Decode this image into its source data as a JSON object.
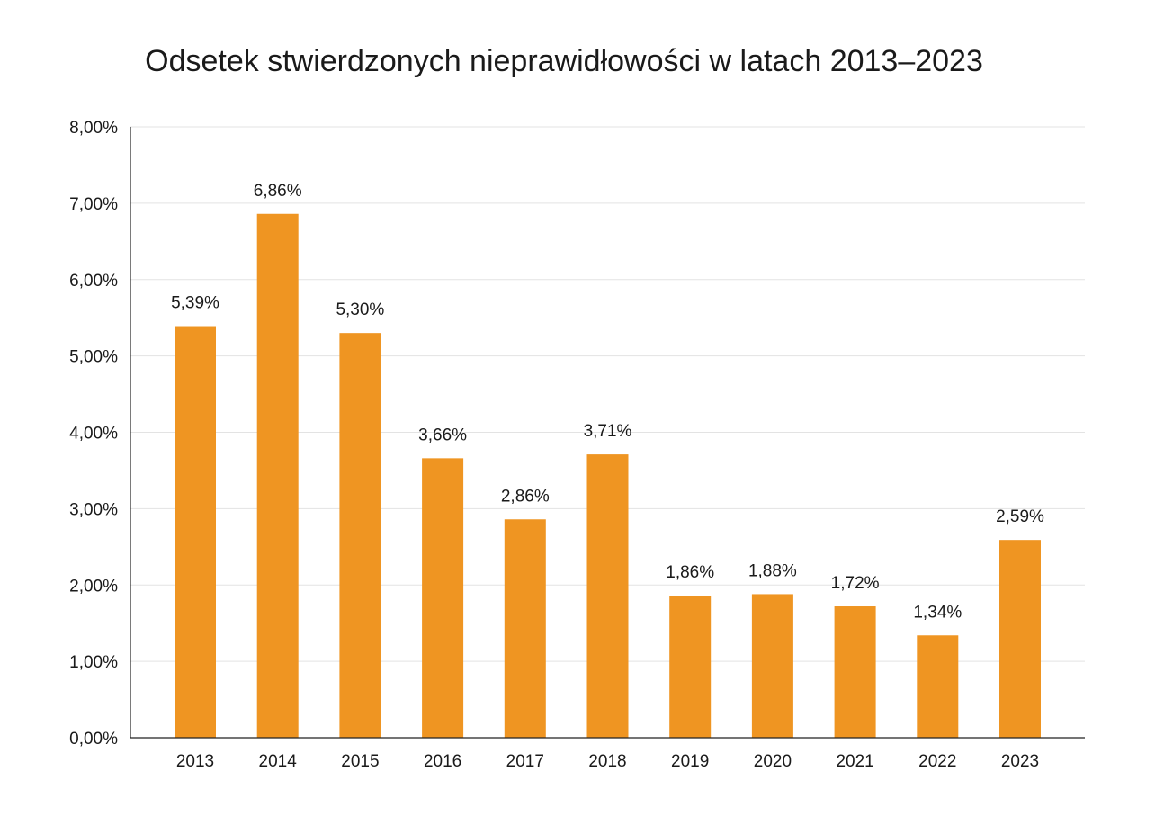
{
  "chart_data": {
    "type": "bar",
    "title": "Odsetek stwierdzonych nieprawidłowości w latach 2013–2023",
    "xlabel": "",
    "ylabel": "",
    "categories": [
      "2013",
      "2014",
      "2015",
      "2016",
      "2017",
      "2018",
      "2019",
      "2020",
      "2021",
      "2022",
      "2023"
    ],
    "values": [
      5.39,
      6.86,
      5.3,
      3.66,
      2.86,
      3.71,
      1.86,
      1.88,
      1.72,
      1.34,
      2.59
    ],
    "data_labels": [
      "5,39%",
      "6,86%",
      "5,30%",
      "3,66%",
      "2,86%",
      "3,71%",
      "1,86%",
      "1,88%",
      "1,72%",
      "1,34%",
      "2,59%"
    ],
    "ylim": [
      0,
      8
    ],
    "yticks": [
      0,
      1,
      2,
      3,
      4,
      5,
      6,
      7,
      8
    ],
    "ytick_labels": [
      "0,00%",
      "1,00%",
      "2,00%",
      "3,00%",
      "4,00%",
      "5,00%",
      "6,00%",
      "7,00%",
      "8,00%"
    ],
    "grid": true,
    "legend": "none",
    "colors": {
      "bar": "#EF9522",
      "grid": "#e3e3e3",
      "axis": "#222222"
    }
  }
}
